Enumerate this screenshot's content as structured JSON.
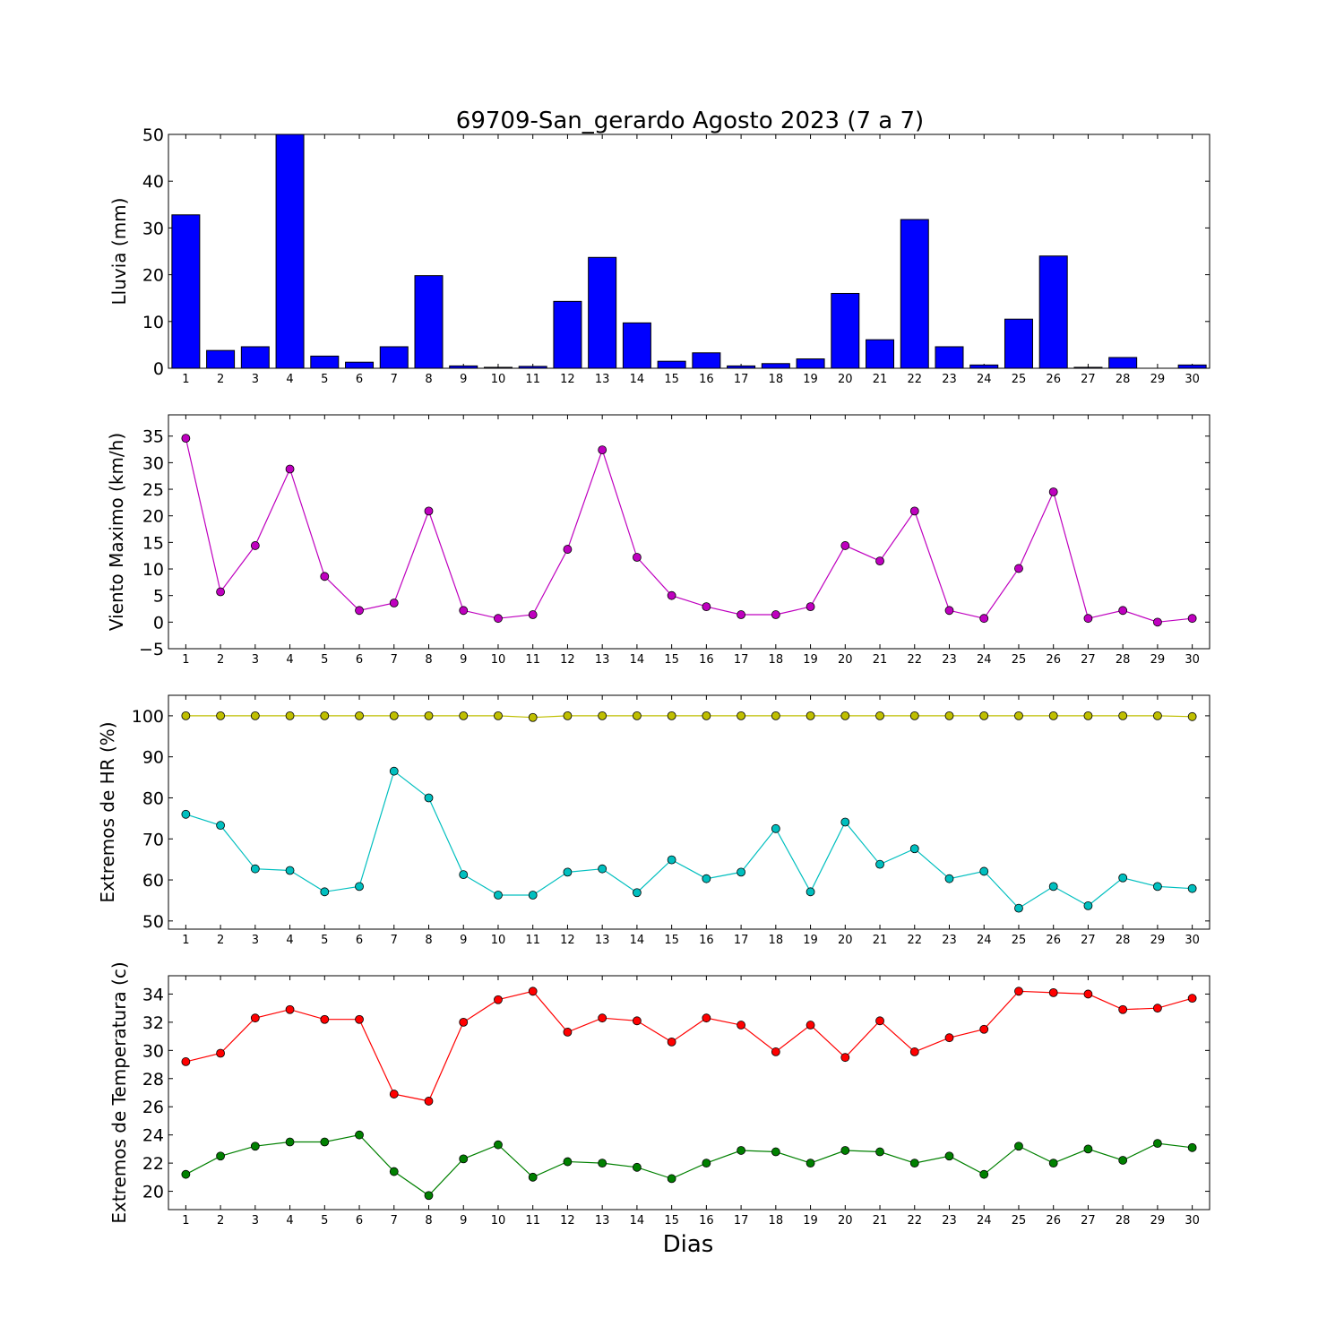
{
  "title": "69709-San_gerardo Agosto 2023  (7 a 7)",
  "xlabel": "Dias",
  "chart_data": [
    {
      "type": "bar",
      "ylabel": "Lluvia (mm)",
      "ylim": [
        0,
        50
      ],
      "yticks": [
        0,
        10,
        20,
        30,
        40,
        50
      ],
      "categories": [
        "1",
        "2",
        "3",
        "4",
        "5",
        "6",
        "7",
        "8",
        "9",
        "10",
        "11",
        "12",
        "13",
        "14",
        "15",
        "16",
        "17",
        "18",
        "19",
        "20",
        "21",
        "22",
        "23",
        "24",
        "25",
        "26",
        "27",
        "28",
        "29",
        "30"
      ],
      "series": [
        {
          "color": "#0000ff",
          "values": [
            32.8,
            3.8,
            4.6,
            50,
            2.6,
            1.3,
            4.6,
            19.8,
            0.5,
            0.2,
            0.4,
            14.3,
            23.7,
            9.7,
            1.5,
            3.3,
            0.5,
            1.0,
            2.0,
            16.0,
            6.1,
            31.8,
            4.6,
            0.7,
            10.5,
            24.0,
            0.2,
            2.3,
            0,
            0.7
          ]
        }
      ]
    },
    {
      "type": "line",
      "ylabel": "Viento Maximo (km/h)",
      "ylim": [
        -5,
        39
      ],
      "yticks": [
        -5,
        0,
        5,
        10,
        15,
        20,
        25,
        30,
        35
      ],
      "categories": [
        "1",
        "2",
        "3",
        "4",
        "5",
        "6",
        "7",
        "8",
        "9",
        "10",
        "11",
        "12",
        "13",
        "14",
        "15",
        "16",
        "17",
        "18",
        "19",
        "20",
        "21",
        "22",
        "23",
        "24",
        "25",
        "26",
        "27",
        "28",
        "29",
        "30"
      ],
      "series": [
        {
          "color": "#bf00bf",
          "values": [
            34.6,
            5.7,
            14.4,
            28.8,
            8.6,
            2.2,
            3.6,
            20.9,
            2.2,
            0.7,
            1.4,
            13.7,
            32.4,
            12.2,
            5.0,
            2.9,
            1.4,
            1.4,
            2.9,
            14.4,
            11.5,
            20.9,
            2.2,
            0.7,
            10.1,
            24.5,
            0.7,
            2.2,
            0,
            0.7
          ]
        }
      ]
    },
    {
      "type": "line",
      "ylabel": "Extremos de HR (%)",
      "ylim": [
        48,
        105
      ],
      "yticks": [
        50,
        60,
        70,
        80,
        90,
        100
      ],
      "categories": [
        "1",
        "2",
        "3",
        "4",
        "5",
        "6",
        "7",
        "8",
        "9",
        "10",
        "11",
        "12",
        "13",
        "14",
        "15",
        "16",
        "17",
        "18",
        "19",
        "20",
        "21",
        "22",
        "23",
        "24",
        "25",
        "26",
        "27",
        "28",
        "29",
        "30"
      ],
      "series": [
        {
          "color": "#bfbf00",
          "values": [
            100,
            100,
            100,
            100,
            100,
            100,
            100,
            100,
            100,
            100,
            99.6,
            100,
            100,
            100,
            100,
            100,
            100,
            100,
            100,
            100,
            100,
            100,
            100,
            100,
            100,
            100,
            100,
            100,
            100,
            99.8
          ]
        },
        {
          "color": "#00bfbf",
          "values": [
            76,
            73.3,
            62.7,
            62.3,
            57.1,
            58.4,
            86.5,
            80,
            61.3,
            56.3,
            56.3,
            61.9,
            62.7,
            56.9,
            64.9,
            60.3,
            61.9,
            72.5,
            57.1,
            74.1,
            63.8,
            67.6,
            60.3,
            62.1,
            53.1,
            58.4,
            53.7,
            60.5,
            58.4,
            57.9
          ]
        }
      ]
    },
    {
      "type": "line",
      "ylabel": "Extremos de Temperatura (c)",
      "ylim": [
        18.7,
        35.3
      ],
      "yticks": [
        20,
        22,
        24,
        26,
        28,
        30,
        32,
        34
      ],
      "categories": [
        "1",
        "2",
        "3",
        "4",
        "5",
        "6",
        "7",
        "8",
        "9",
        "10",
        "11",
        "12",
        "13",
        "14",
        "15",
        "16",
        "17",
        "18",
        "19",
        "20",
        "21",
        "22",
        "23",
        "24",
        "25",
        "26",
        "27",
        "28",
        "29",
        "30"
      ],
      "series": [
        {
          "color": "#ff0000",
          "values": [
            29.2,
            29.8,
            32.3,
            32.9,
            32.2,
            32.2,
            26.9,
            26.4,
            32.0,
            33.6,
            34.2,
            31.3,
            32.3,
            32.1,
            30.6,
            32.3,
            31.8,
            29.9,
            31.8,
            29.5,
            32.1,
            29.9,
            30.9,
            31.5,
            34.2,
            34.1,
            34.0,
            32.9,
            33.0,
            33.7
          ]
        },
        {
          "color": "#008000",
          "values": [
            21.2,
            22.5,
            23.2,
            23.5,
            23.5,
            24.0,
            21.4,
            19.7,
            22.3,
            23.3,
            21.0,
            22.1,
            22.0,
            21.7,
            20.9,
            22.0,
            22.9,
            22.8,
            22.0,
            22.9,
            22.8,
            22.0,
            22.5,
            21.2,
            23.2,
            22.0,
            23.0,
            22.2,
            23.4,
            23.1
          ]
        }
      ]
    }
  ]
}
